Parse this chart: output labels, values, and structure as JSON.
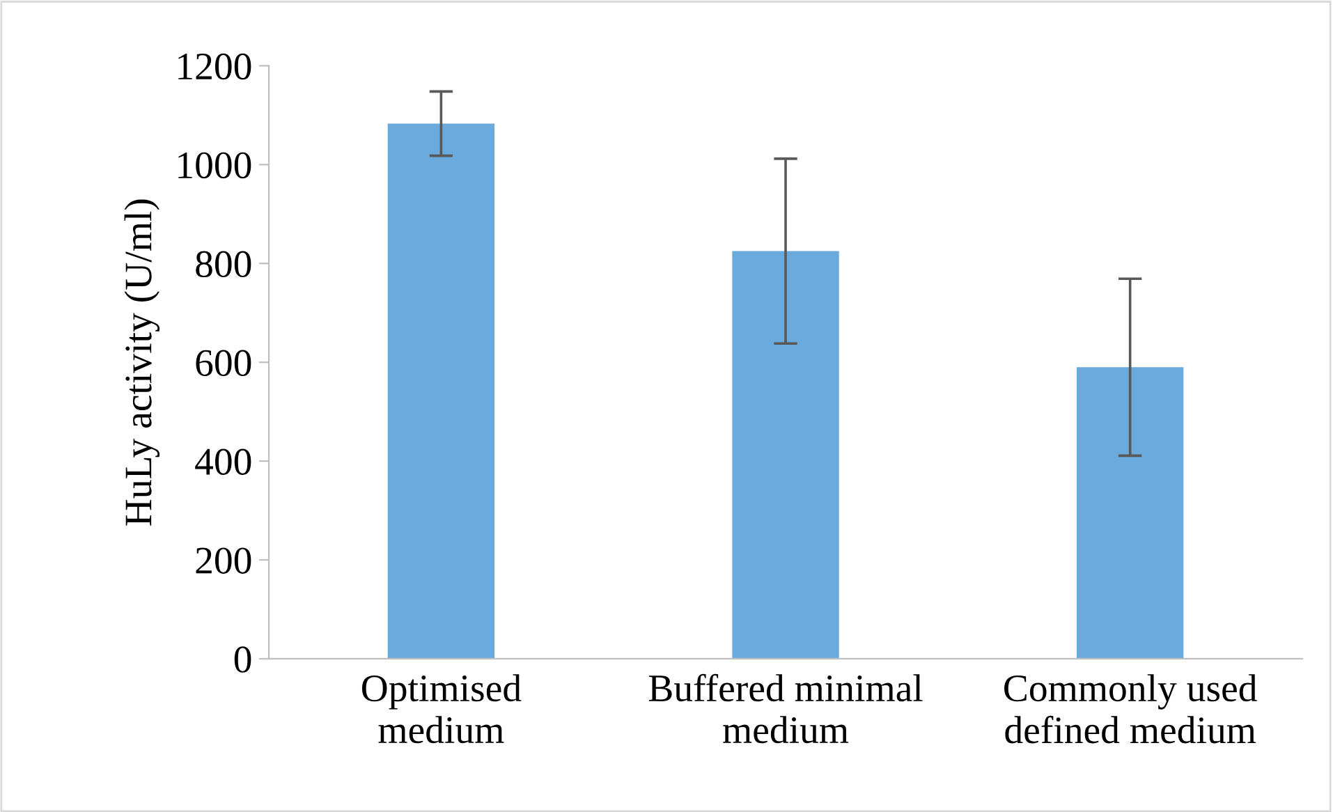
{
  "chart_data": {
    "type": "bar",
    "ylabel": "HuLy activity (U/ml)",
    "categories": [
      "Optimised\nmedium",
      "Buffered minimal\nmedium",
      "Commonly used\ndefined medium"
    ],
    "values": [
      1083,
      825,
      590
    ],
    "errors": [
      65,
      187,
      179
    ],
    "color": "#6aaadd",
    "ylim": [
      0,
      1200
    ],
    "yticks": [
      0,
      200,
      400,
      600,
      800,
      1000,
      1200
    ],
    "grid": false,
    "legend": false
  }
}
